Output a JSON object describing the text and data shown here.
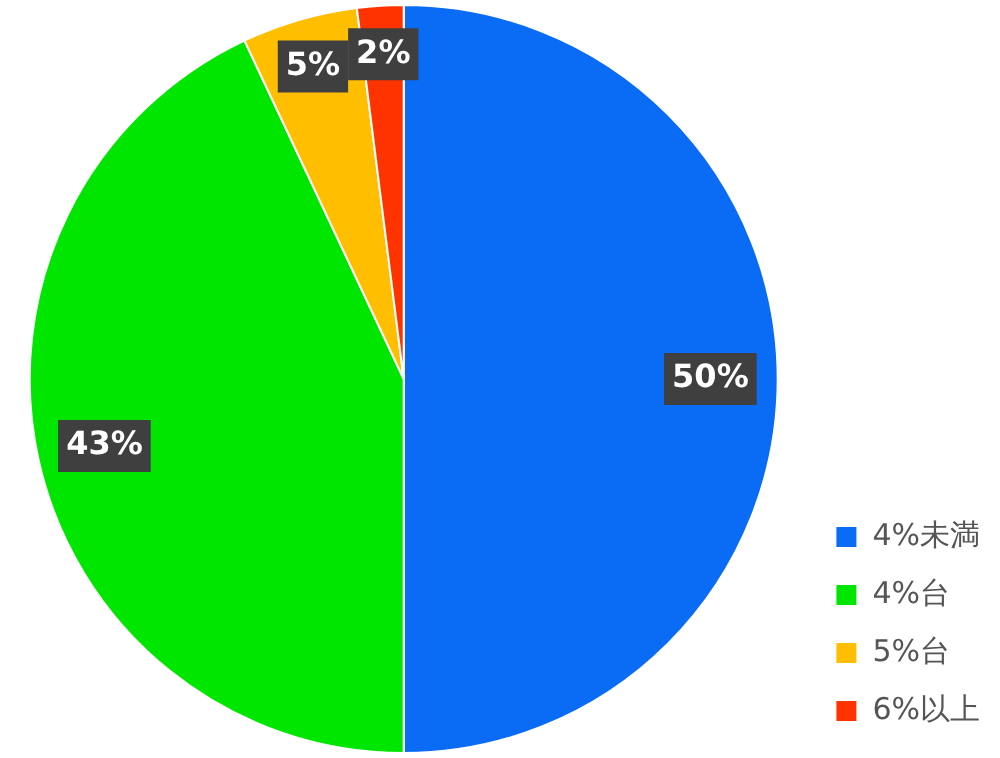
{
  "chart_data": {
    "type": "pie",
    "categories": [
      "4%未満",
      "4%台",
      "5%台",
      "6%以上"
    ],
    "values": [
      50,
      43,
      5,
      2
    ],
    "colors": [
      "#0a6cf5",
      "#00e600",
      "#ffbf00",
      "#ff3300"
    ],
    "value_labels": [
      "50%",
      "43%",
      "5%",
      "2%"
    ],
    "legend": "bottom right"
  }
}
